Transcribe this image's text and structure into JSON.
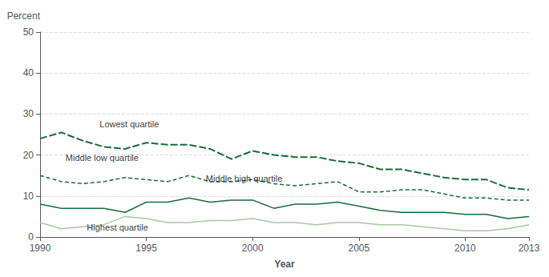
{
  "chart_data": {
    "type": "line",
    "x_label": "Year",
    "y_label": "Percent",
    "x": [
      1990,
      1991,
      1992,
      1993,
      1994,
      1995,
      1996,
      1997,
      1998,
      1999,
      2000,
      2001,
      2002,
      2003,
      2004,
      2005,
      2006,
      2007,
      2008,
      2009,
      2010,
      2011,
      2012,
      2013
    ],
    "series": [
      {
        "color": "#1a6b3c",
        "line_style": "long_dashed",
        "values": [
          24.0,
          25.5,
          23.5,
          22.0,
          21.5,
          23.0,
          22.5,
          22.5,
          21.5,
          19.0,
          21.0,
          20.0,
          19.5,
          19.5,
          18.5,
          18.0,
          16.5,
          16.5,
          15.5,
          14.5,
          14.0,
          14.0,
          12.0,
          11.5
        ]
      },
      {
        "color": "#1a6b3c",
        "line_style": "dashed",
        "values": [
          15.0,
          13.5,
          13.0,
          13.5,
          14.5,
          14.0,
          13.5,
          15.0,
          13.5,
          13.5,
          14.0,
          13.0,
          12.5,
          13.0,
          13.5,
          11.0,
          11.0,
          11.5,
          11.5,
          10.5,
          9.5,
          9.5,
          9.0,
          9.0
        ]
      },
      {
        "color": "#1a6b3c",
        "line_style": "solid",
        "values": [
          8.0,
          7.0,
          7.0,
          7.0,
          6.0,
          8.5,
          8.5,
          9.5,
          8.5,
          9.0,
          9.0,
          7.0,
          8.0,
          8.0,
          8.5,
          7.5,
          6.5,
          6.0,
          6.0,
          6.0,
          5.5,
          5.5,
          4.5,
          5.0
        ]
      },
      {
        "color": "#a8c8a0",
        "line_style": "solid",
        "values": [
          3.5,
          2.0,
          2.5,
          3.0,
          5.0,
          4.5,
          3.5,
          3.5,
          4.0,
          4.0,
          4.5,
          3.5,
          3.5,
          3.0,
          3.5,
          3.5,
          3.0,
          3.0,
          2.5,
          2.0,
          1.5,
          1.5,
          2.0,
          3.0
        ]
      }
    ],
    "annotations": [
      {
        "text": "Lowest quartile",
        "x": 1992.8,
        "y": 26.5
      },
      {
        "text": "Middle low quartile",
        "x": 1991.2,
        "y": 18.2
      },
      {
        "text": "Middle high quartile",
        "x": 1997.8,
        "y": 13.2
      },
      {
        "text": "Highest quartile",
        "x": 1992.2,
        "y": 1.2
      }
    ],
    "xlim": [
      1990,
      2013
    ],
    "xticks": [
      1990,
      1995,
      2000,
      2005,
      2010,
      2013
    ],
    "ylim": [
      0,
      50
    ],
    "yticks": [
      0,
      10,
      20,
      30,
      40,
      50
    ],
    "grid": true
  }
}
